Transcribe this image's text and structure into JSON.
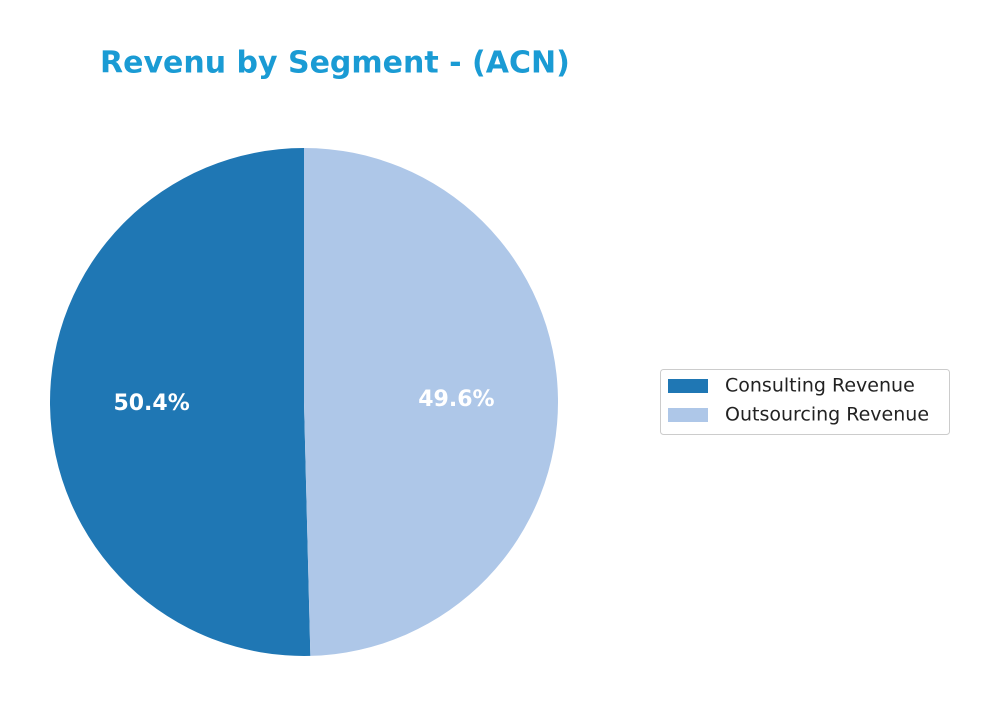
{
  "chart_data": {
    "type": "pie",
    "title": "Revenu by Segment - (ACN)",
    "categories": [
      "Consulting Revenue",
      "Outsourcing Revenue"
    ],
    "values": [
      50.4,
      49.6
    ],
    "value_labels": [
      "50.4%",
      "49.6%"
    ],
    "colors": [
      "#1f77b4",
      "#aec7e8"
    ],
    "legend": "right"
  }
}
